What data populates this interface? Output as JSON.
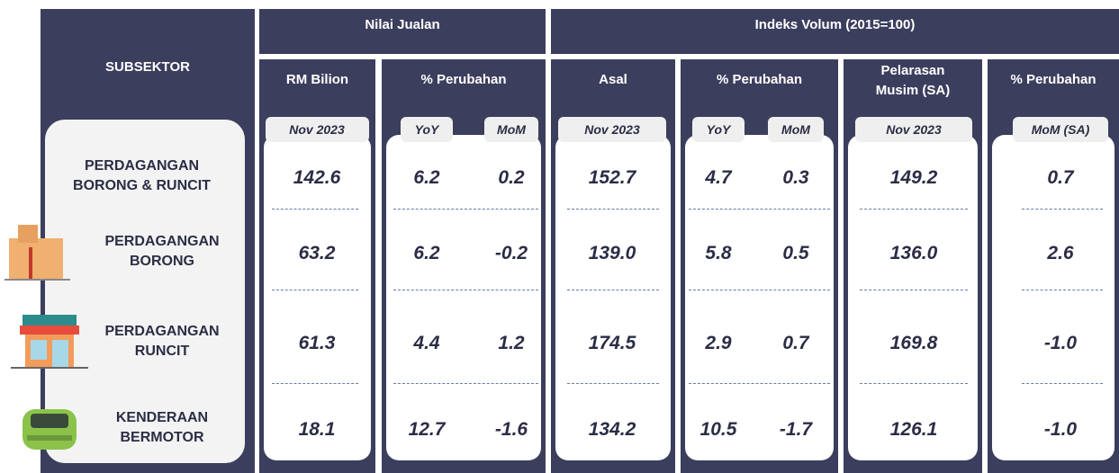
{
  "header": {
    "subsektor": "SUBSEKTOR",
    "nilai_jualan": "Nilai Jualan",
    "indeks_volum": "Indeks Volum (2015=100)"
  },
  "subheaders": [
    [
      "RM Bilion"
    ],
    [
      "% Perubahan"
    ],
    [
      "Asal"
    ],
    [
      "% Perubahan"
    ],
    [
      "Pelarasan",
      "Musim (SA)"
    ],
    [
      "% Perubahan"
    ]
  ],
  "periods": [
    "Nov 2023",
    "YoY",
    "MoM",
    "Nov 2023",
    "YoY",
    "MoM",
    "Nov 2023",
    "MoM (SA)"
  ],
  "rows": [
    {
      "label": [
        "PERDAGANGAN",
        "BORONG & RUNCIT"
      ],
      "values": [
        "142.6",
        "6.2",
        "0.2",
        "152.7",
        "4.7",
        "0.3",
        "149.2",
        "0.7"
      ]
    },
    {
      "label": [
        "PERDAGANGAN",
        "BORONG"
      ],
      "values": [
        "63.2",
        "6.2",
        "-0.2",
        "139.0",
        "5.8",
        "0.5",
        "136.0",
        "2.6"
      ]
    },
    {
      "label": [
        "PERDAGANGAN",
        "RUNCIT"
      ],
      "values": [
        "61.3",
        "4.4",
        "1.2",
        "174.5",
        "2.9",
        "0.7",
        "169.8",
        "-1.0"
      ]
    },
    {
      "label": [
        "KENDERAAN",
        "BERMOTOR"
      ],
      "values": [
        "18.1",
        "12.7",
        "-1.6",
        "134.2",
        "10.5",
        "-1.7",
        "126.1",
        "-1.0"
      ]
    }
  ]
}
